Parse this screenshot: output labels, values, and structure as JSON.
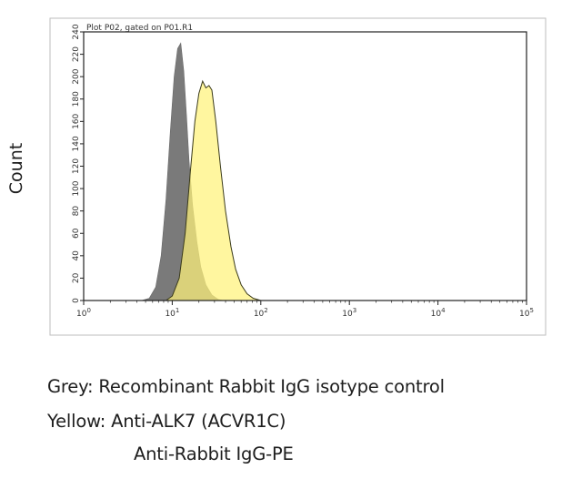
{
  "chart_data": {
    "type": "area",
    "title": "Plot P02, gated on P01.R1",
    "ylabel": "Count",
    "xlabel": "",
    "xscale": "log",
    "xlim": [
      1,
      100000
    ],
    "ylim": [
      0,
      240
    ],
    "x_ticks": [
      {
        "base": "10",
        "exp": "0"
      },
      {
        "base": "10",
        "exp": "1"
      },
      {
        "base": "10",
        "exp": "2"
      },
      {
        "base": "10",
        "exp": "3"
      },
      {
        "base": "10",
        "exp": "4"
      },
      {
        "base": "10",
        "exp": "5"
      }
    ],
    "y_ticks": [
      "0",
      "20",
      "40",
      "60",
      "80",
      "100",
      "120",
      "140",
      "160",
      "180",
      "200",
      "220",
      "240"
    ],
    "grid": false,
    "series": [
      {
        "color": "#7a7a7a",
        "points": [
          [
            4.5,
            0
          ],
          [
            5.5,
            2
          ],
          [
            6.5,
            12
          ],
          [
            7.5,
            40
          ],
          [
            8.5,
            90
          ],
          [
            9.5,
            150
          ],
          [
            10.5,
            200
          ],
          [
            11.5,
            225
          ],
          [
            12.5,
            230
          ],
          [
            13.5,
            205
          ],
          [
            14.5,
            165
          ],
          [
            15.5,
            125
          ],
          [
            17,
            85
          ],
          [
            19,
            52
          ],
          [
            21,
            30
          ],
          [
            24,
            14
          ],
          [
            28,
            5
          ],
          [
            33,
            1
          ],
          [
            38,
            0
          ]
        ]
      },
      {
        "color": "#fff27a",
        "points": [
          [
            8.5,
            0
          ],
          [
            10,
            4
          ],
          [
            12,
            20
          ],
          [
            14,
            60
          ],
          [
            16,
            115
          ],
          [
            18,
            160
          ],
          [
            20,
            185
          ],
          [
            22,
            196
          ],
          [
            24,
            190
          ],
          [
            26,
            192
          ],
          [
            28,
            188
          ],
          [
            31,
            160
          ],
          [
            35,
            120
          ],
          [
            40,
            80
          ],
          [
            46,
            48
          ],
          [
            52,
            28
          ],
          [
            60,
            14
          ],
          [
            70,
            6
          ],
          [
            82,
            2
          ],
          [
            100,
            0
          ]
        ]
      }
    ]
  },
  "legend": {
    "line1": "Grey: Recombinant Rabbit IgG isotype control",
    "line2": "Yellow: Anti-ALK7 (ACVR1C)",
    "line3": "Anti-Rabbit IgG-PE"
  }
}
